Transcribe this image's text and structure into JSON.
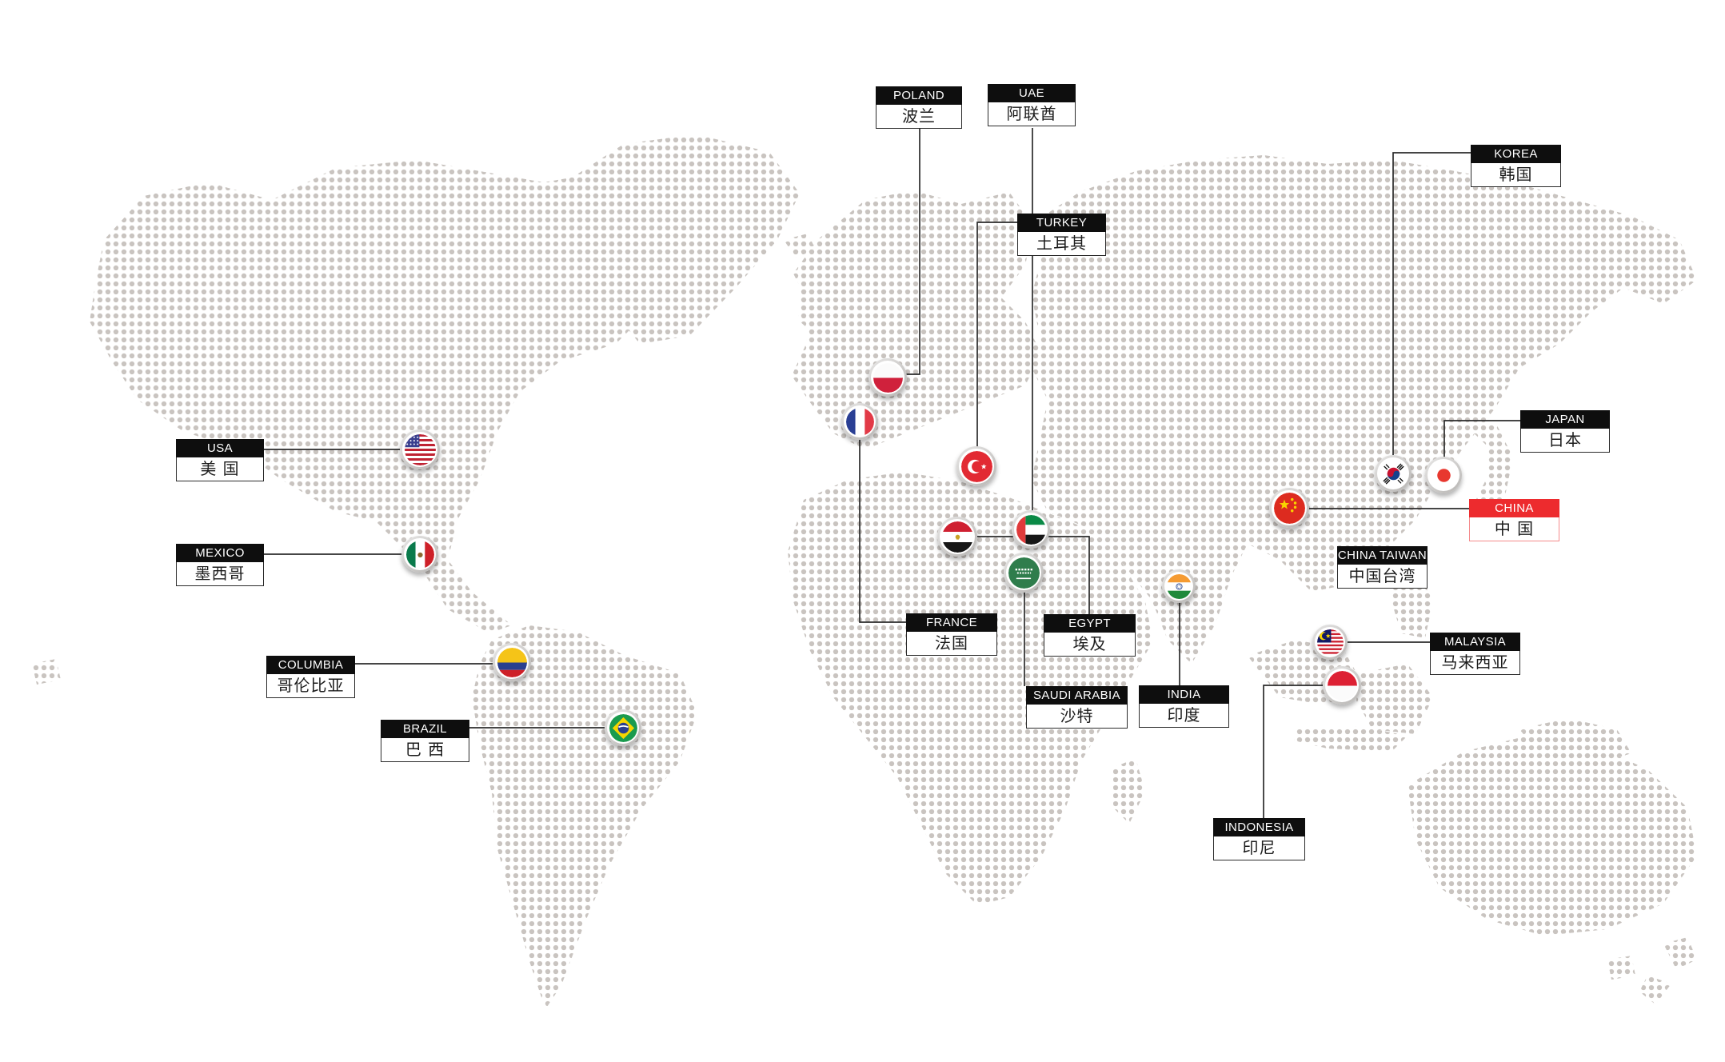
{
  "map": {
    "title": "global-presence-dot-map",
    "colors": {
      "label_header_bg": "#0e0e0e",
      "label_header_text": "#ffffff",
      "label_body_text": "#1c1c1c",
      "highlight_red": "#ed2b2e",
      "dot_color": "#c9c4c0",
      "connector_line": "#2b2b2b"
    },
    "countries": [
      {
        "id": "poland",
        "name_en": "POLAND",
        "name_zh": "波兰",
        "highlighted": false
      },
      {
        "id": "uae",
        "name_en": "UAE",
        "name_zh": "阿联酋",
        "highlighted": false
      },
      {
        "id": "korea",
        "name_en": "KOREA",
        "name_zh": "韩国",
        "highlighted": false
      },
      {
        "id": "turkey",
        "name_en": "TURKEY",
        "name_zh": "土耳其",
        "highlighted": false
      },
      {
        "id": "japan",
        "name_en": "JAPAN",
        "name_zh": "日本",
        "highlighted": false
      },
      {
        "id": "usa",
        "name_en": "USA",
        "name_zh": "美 国",
        "highlighted": false
      },
      {
        "id": "china",
        "name_en": "CHINA",
        "name_zh": "中 国",
        "highlighted": true
      },
      {
        "id": "mexico",
        "name_en": "MEXICO",
        "name_zh": "墨西哥",
        "highlighted": false
      },
      {
        "id": "china_taiwan",
        "name_en": "CHINA TAIWAN",
        "name_zh": "中国台湾",
        "highlighted": false
      },
      {
        "id": "france",
        "name_en": "FRANCE",
        "name_zh": "法国",
        "highlighted": false
      },
      {
        "id": "egypt",
        "name_en": "EGYPT",
        "name_zh": "埃及",
        "highlighted": false
      },
      {
        "id": "malaysia",
        "name_en": "MALAYSIA",
        "name_zh": "马来西亚",
        "highlighted": false
      },
      {
        "id": "columbia",
        "name_en": "COLUMBIA",
        "name_zh": "哥伦比亚",
        "highlighted": false
      },
      {
        "id": "saudi_arabia",
        "name_en": "SAUDI ARABIA",
        "name_zh": "沙特",
        "highlighted": false
      },
      {
        "id": "india",
        "name_en": "INDIA",
        "name_zh": "印度",
        "highlighted": false
      },
      {
        "id": "brazil",
        "name_en": "BRAZIL",
        "name_zh": "巴 西",
        "highlighted": false
      },
      {
        "id": "indonesia",
        "name_en": "INDONESIA",
        "name_zh": "印尼",
        "highlighted": false
      }
    ]
  }
}
